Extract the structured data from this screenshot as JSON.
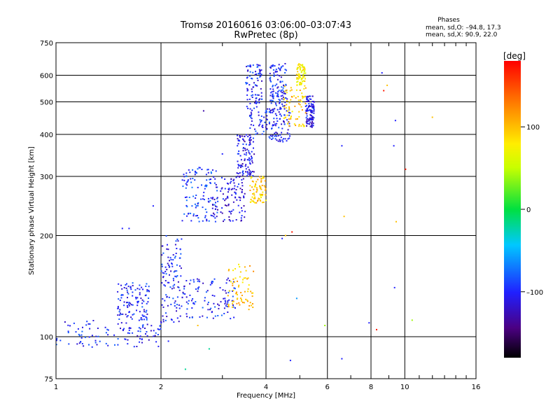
{
  "chart_data": {
    "type": "scatter",
    "title": "Tromsø 20160616 03:06:00–03:07:43",
    "subtitle": "RwPretec (8p)",
    "xlabel": "Frequency [MHz]",
    "ylabel": "Stationary phase Virtual Height [km]",
    "x_scale": "log",
    "y_scale": "log",
    "xlim": [
      1,
      16
    ],
    "ylim": [
      75,
      750
    ],
    "x_ticks": [
      1,
      2,
      4,
      6,
      8,
      10,
      16
    ],
    "y_ticks": [
      75,
      100,
      200,
      300,
      400,
      500,
      600,
      750
    ],
    "grid": true,
    "phases_box": {
      "title": "Phases",
      "line_o": "mean, sd,O: –94.8, 17.3",
      "line_x": "mean, sd,X:  90.9, 22.0"
    },
    "colorbar": {
      "label": "[deg]",
      "range": [
        -180,
        180
      ],
      "ticks": [
        100,
        0,
        -100
      ],
      "tick_labels": [
        "100",
        "0",
        "–100"
      ],
      "colormap": "rainbow (black-purple-blue-cyan-green-yellow-orange-red)"
    },
    "o_mode_clusters": [
      {
        "x": [
          1.0,
          2.0
        ],
        "y": [
          93,
          112
        ],
        "phase": -100
      },
      {
        "x": [
          1.5,
          1.85
        ],
        "y": [
          112,
          145
        ],
        "phase": -100
      },
      {
        "x": [
          2.0,
          2.3
        ],
        "y": [
          110,
          200
        ],
        "phase": -100
      },
      {
        "x": [
          2.3,
          3.3
        ],
        "y": [
          113,
          150
        ],
        "phase": -100
      },
      {
        "x": [
          2.3,
          2.9
        ],
        "y": [
          220,
          320
        ],
        "phase": -90
      },
      {
        "x": [
          2.8,
          3.5
        ],
        "y": [
          220,
          300
        ],
        "phase": -110
      },
      {
        "x": [
          3.3,
          3.7
        ],
        "y": [
          300,
          400
        ],
        "phase": -110
      },
      {
        "x": [
          3.5,
          3.9
        ],
        "y": [
          400,
          650
        ],
        "phase": -100
      },
      {
        "x": [
          3.9,
          4.7
        ],
        "y": [
          380,
          480
        ],
        "phase": -100
      },
      {
        "x": [
          4.1,
          4.6
        ],
        "y": [
          480,
          650
        ],
        "phase": -100
      },
      {
        "x": [
          5.2,
          5.5
        ],
        "y": [
          420,
          520
        ],
        "phase": -110
      }
    ],
    "x_mode_clusters": [
      {
        "x": [
          3.1,
          3.7
        ],
        "y": [
          120,
          165
        ],
        "phase": 100
      },
      {
        "x": [
          3.6,
          4.0
        ],
        "y": [
          250,
          300
        ],
        "phase": 95
      },
      {
        "x": [
          4.5,
          5.2
        ],
        "y": [
          420,
          560
        ],
        "phase": 95
      },
      {
        "x": [
          4.9,
          5.2
        ],
        "y": [
          560,
          650
        ],
        "phase": 80
      }
    ],
    "scattered_points": [
      {
        "x": 1.55,
        "y": 210,
        "phase": -100
      },
      {
        "x": 1.62,
        "y": 210,
        "phase": -100
      },
      {
        "x": 1.9,
        "y": 245,
        "phase": -100
      },
      {
        "x": 2.1,
        "y": 97,
        "phase": -100
      },
      {
        "x": 2.35,
        "y": 80,
        "phase": -20
      },
      {
        "x": 2.75,
        "y": 92,
        "phase": -20
      },
      {
        "x": 2.55,
        "y": 108,
        "phase": 100
      },
      {
        "x": 2.65,
        "y": 470,
        "phase": -130
      },
      {
        "x": 3.0,
        "y": 350,
        "phase": -100
      },
      {
        "x": 3.05,
        "y": 130,
        "phase": -100
      },
      {
        "x": 4.45,
        "y": 196,
        "phase": -100
      },
      {
        "x": 4.55,
        "y": 200,
        "phase": 100
      },
      {
        "x": 4.75,
        "y": 205,
        "phase": 170
      },
      {
        "x": 4.9,
        "y": 130,
        "phase": -60
      },
      {
        "x": 4.7,
        "y": 85,
        "phase": -100
      },
      {
        "x": 5.9,
        "y": 108,
        "phase": 40
      },
      {
        "x": 6.6,
        "y": 370,
        "phase": -100
      },
      {
        "x": 6.7,
        "y": 228,
        "phase": 100
      },
      {
        "x": 6.6,
        "y": 86,
        "phase": -100
      },
      {
        "x": 7.9,
        "y": 110,
        "phase": -100
      },
      {
        "x": 8.3,
        "y": 105,
        "phase": 170
      },
      {
        "x": 8.6,
        "y": 610,
        "phase": -100
      },
      {
        "x": 8.7,
        "y": 540,
        "phase": 170
      },
      {
        "x": 8.9,
        "y": 560,
        "phase": 100
      },
      {
        "x": 9.3,
        "y": 370,
        "phase": -100
      },
      {
        "x": 9.4,
        "y": 440,
        "phase": -100
      },
      {
        "x": 9.45,
        "y": 220,
        "phase": 100
      },
      {
        "x": 9.35,
        "y": 140,
        "phase": -100
      },
      {
        "x": 10.05,
        "y": 315,
        "phase": 170
      },
      {
        "x": 10.5,
        "y": 112,
        "phase": 40
      },
      {
        "x": 12.0,
        "y": 450,
        "phase": 100
      }
    ]
  }
}
